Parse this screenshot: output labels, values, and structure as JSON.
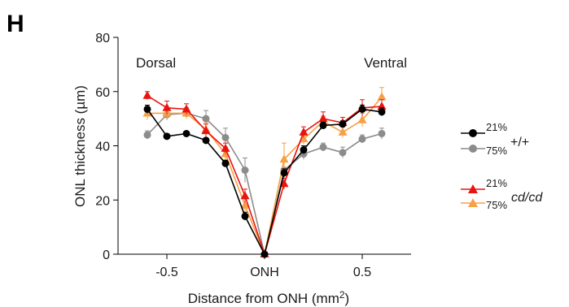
{
  "panel_label": "H",
  "chart_data": {
    "type": "line",
    "xlabel": "Distance from ONH (mm",
    "xlabel_sup": "2",
    "xlabel_tail": ")",
    "ylabel": "ONL thickness (µm)",
    "ylim": [
      0,
      80
    ],
    "yticks": [
      0,
      20,
      40,
      60,
      80
    ],
    "ytick_labels": [
      "0",
      "20",
      "40",
      "60",
      "80"
    ],
    "xlim": [
      -0.75,
      0.75
    ],
    "xticks": [
      -0.5,
      0,
      0.5
    ],
    "xtick_labels": [
      "-0.5",
      "ONH",
      "0.5"
    ],
    "x": [
      -0.6,
      -0.5,
      -0.4,
      -0.3,
      -0.2,
      -0.1,
      0,
      0.1,
      0.2,
      0.3,
      0.4,
      0.5,
      0.6
    ],
    "region_labels": [
      "Dorsal",
      "Ventral"
    ],
    "series": [
      {
        "name": "21% +/+",
        "color": "#000000",
        "marker": "circle",
        "values": [
          53.5,
          43.5,
          44.5,
          42,
          33.5,
          14,
          0,
          30,
          38.5,
          47.5,
          48,
          53.5,
          52.5
        ],
        "errors": [
          1.5,
          0.8,
          0.8,
          0.8,
          1.2,
          1.5,
          0,
          1.5,
          1.5,
          1.2,
          1.2,
          1.5,
          1.5
        ]
      },
      {
        "name": "75% +/+",
        "color": "#8c8c8c",
        "marker": "circle",
        "values": [
          44,
          51.5,
          52,
          50,
          43,
          31,
          0,
          31,
          37,
          39.5,
          37.5,
          42.5,
          44.5
        ],
        "errors": [
          1.5,
          2,
          2,
          3,
          3.5,
          4.5,
          0,
          3,
          2,
          1.5,
          2,
          1.5,
          2
        ]
      },
      {
        "name": "21% cd/cd",
        "color": "#e8140f",
        "marker": "triangle",
        "values": [
          58.5,
          54,
          53.5,
          45.5,
          39,
          21.5,
          0,
          26,
          45,
          50,
          48.5,
          54,
          54.5
        ],
        "errors": [
          1.5,
          2.5,
          2,
          2.5,
          2,
          2.5,
          0,
          2,
          2,
          2.5,
          2,
          3,
          2.5
        ]
      },
      {
        "name": "75% cd/cd",
        "color": "#f7a044",
        "marker": "triangle",
        "values": [
          52,
          52,
          52,
          46,
          37,
          18,
          0,
          35,
          42.5,
          49,
          45,
          49.5,
          58
        ],
        "errors": [
          2.5,
          2,
          2,
          2.5,
          2.5,
          2.5,
          0,
          6,
          2,
          2,
          2,
          2.5,
          3.5
        ]
      }
    ],
    "legend": {
      "position": "right",
      "groups": [
        {
          "genotype": "+/+",
          "italic": false,
          "entries": [
            "21%",
            "75%"
          ]
        },
        {
          "genotype": "cd/cd",
          "italic": true,
          "entries": [
            "21%",
            "75%"
          ]
        }
      ]
    }
  }
}
